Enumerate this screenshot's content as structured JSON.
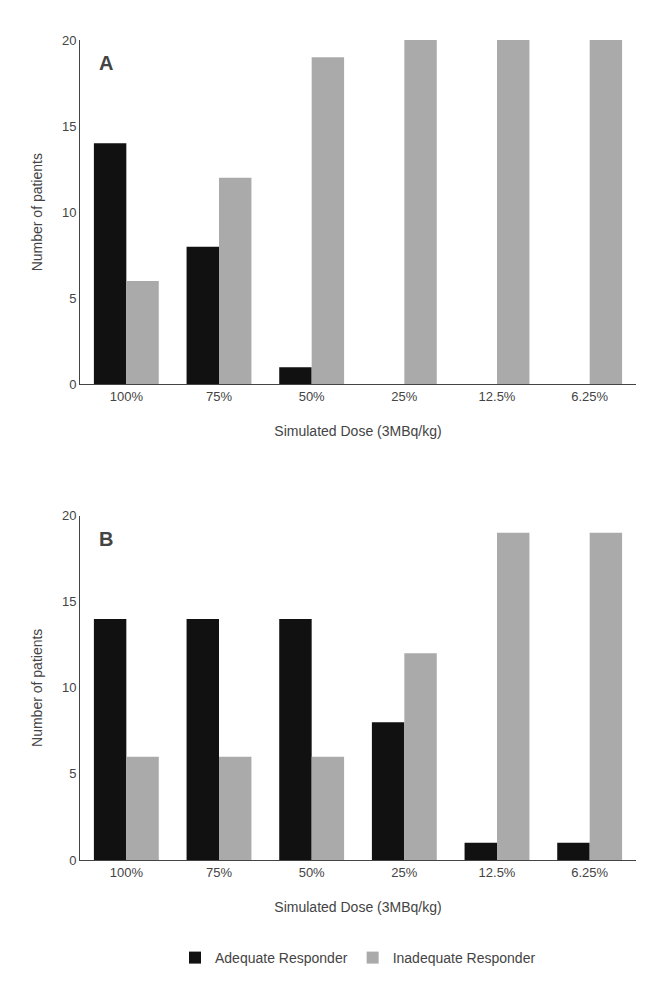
{
  "chart_data": [
    {
      "type": "bar",
      "annotations": [
        "A"
      ],
      "xlabel": "Simulated Dose (3MBq/kg)",
      "ylabel": "Number of patients",
      "categories": [
        "100%",
        "75%",
        "50%",
        "25%",
        "12.5%",
        "6.25%"
      ],
      "series": [
        {
          "name": "Adequate Responder",
          "color": "#111111",
          "values": [
            14,
            8,
            1,
            0,
            0,
            0
          ]
        },
        {
          "name": "Inadequate Responder",
          "color": "#aaaaaa",
          "values": [
            6,
            12,
            19,
            20,
            20,
            20
          ]
        }
      ],
      "ylim": [
        0,
        20
      ],
      "yticks": [
        0,
        5,
        10,
        15,
        20
      ],
      "grid": false,
      "legend": "bottom"
    },
    {
      "type": "bar",
      "annotations": [
        "B"
      ],
      "xlabel": "Simulated Dose (3MBq/kg)",
      "ylabel": "Number of patients",
      "categories": [
        "100%",
        "75%",
        "50%",
        "25%",
        "12.5%",
        "6.25%"
      ],
      "series": [
        {
          "name": "Adequate Responder",
          "color": "#111111",
          "values": [
            14,
            14,
            14,
            8,
            1,
            1
          ]
        },
        {
          "name": "Inadequate Responder",
          "color": "#aaaaaa",
          "values": [
            6,
            6,
            6,
            12,
            19,
            19
          ]
        }
      ],
      "ylim": [
        0,
        20
      ],
      "yticks": [
        0,
        5,
        10,
        15,
        20
      ],
      "grid": false,
      "legend": "bottom"
    }
  ]
}
